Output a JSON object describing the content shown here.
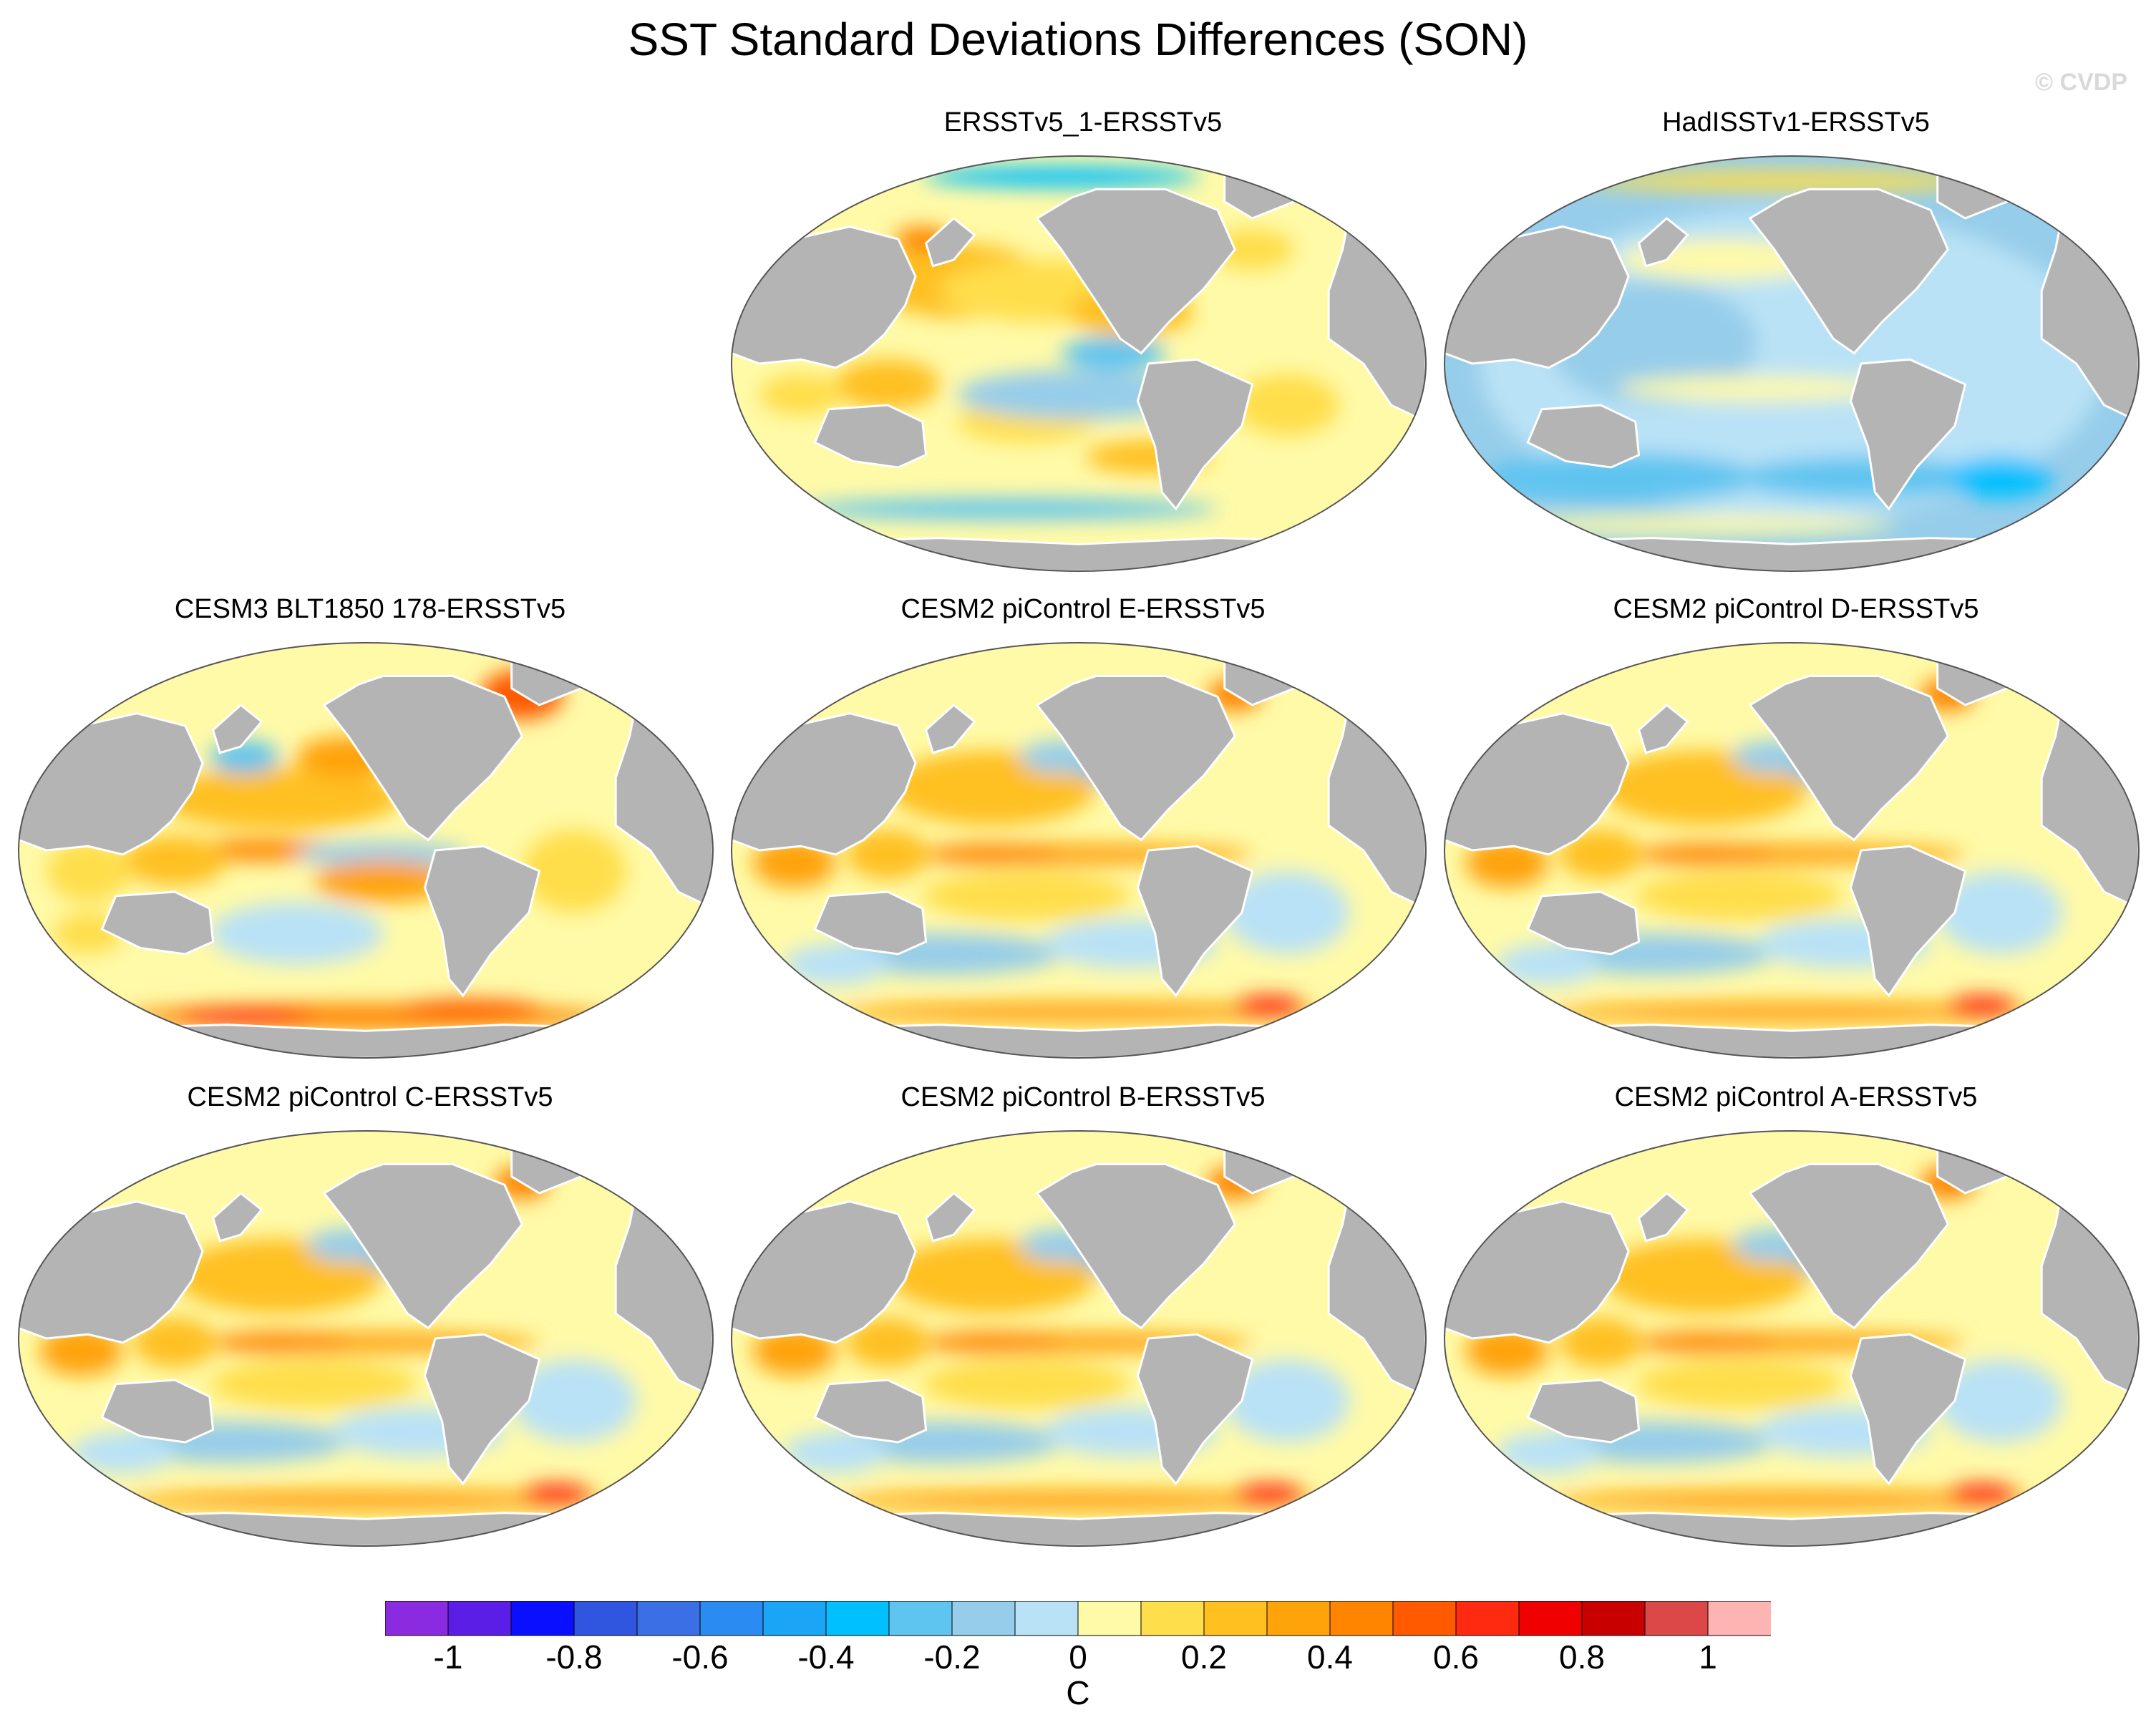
{
  "title": "SST Standard Deviations Differences (SON)",
  "watermark": "© CVDP",
  "panels": [
    {
      "label": "ERSSTv5_1-ERSSTv5",
      "pattern": "obs1",
      "row": 0,
      "col": 1
    },
    {
      "label": "HadISSTv1-ERSSTv5",
      "pattern": "obs2",
      "row": 0,
      "col": 2
    },
    {
      "label": "CESM3 BLT1850 178-ERSSTv5",
      "pattern": "cesm3",
      "row": 1,
      "col": 0
    },
    {
      "label": "CESM2 piControl E-ERSSTv5",
      "pattern": "cesm2",
      "row": 1,
      "col": 1
    },
    {
      "label": "CESM2 piControl D-ERSSTv5",
      "pattern": "cesm2",
      "row": 1,
      "col": 2
    },
    {
      "label": "CESM2 piControl C-ERSSTv5",
      "pattern": "cesm2",
      "row": 2,
      "col": 0
    },
    {
      "label": "CESM2 piControl B-ERSSTv5",
      "pattern": "cesm2",
      "row": 2,
      "col": 1
    },
    {
      "label": "CESM2 piControl A-ERSSTv5",
      "pattern": "cesm2",
      "row": 2,
      "col": 2
    }
  ],
  "colorbar": {
    "colors": [
      "#8a2be2",
      "#5a1ee6",
      "#0a10ff",
      "#3055e0",
      "#3b6fe6",
      "#2a8cf2",
      "#1aa5f7",
      "#00c0ff",
      "#5ec4f0",
      "#96cdea",
      "#b9e2f6",
      "#fffaa8",
      "#ffde4c",
      "#ffc020",
      "#ffa30a",
      "#ff8400",
      "#ff5a00",
      "#ff2a10",
      "#f00000",
      "#c80000",
      "#dc4848",
      "#ffb4b4"
    ],
    "ticks": [
      "-1",
      "-0.8",
      "-0.6",
      "-0.4",
      "-0.2",
      "0",
      "0.2",
      "0.4",
      "0.6",
      "0.8",
      "1"
    ],
    "units": "C"
  }
}
